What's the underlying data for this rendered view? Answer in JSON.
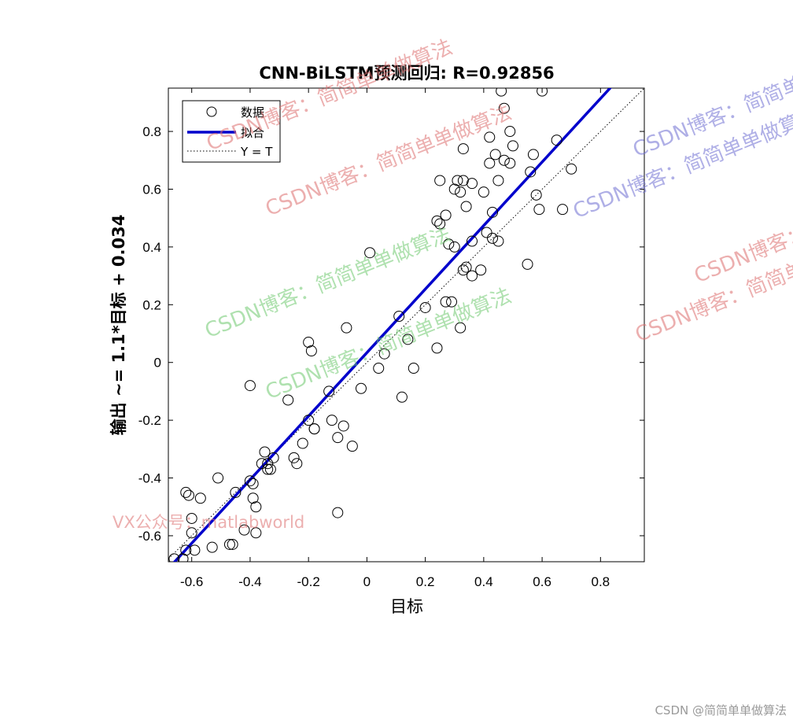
{
  "chart_data": {
    "type": "scatter",
    "title": "CNN-BiLSTM预测回归: R=0.92856",
    "xlabel": "目标",
    "ylabel": "输出 ~= 1.1*目标 + 0.034",
    "xlim": [
      -0.68,
      0.95
    ],
    "ylim": [
      -0.69,
      0.95
    ],
    "xticks": [
      -0.6,
      -0.4,
      -0.2,
      0,
      0.2,
      0.4,
      0.6,
      0.8
    ],
    "yticks": [
      -0.6,
      -0.4,
      -0.2,
      0,
      0.2,
      0.4,
      0.6,
      0.8
    ],
    "xtick_labels": [
      "-0.6",
      "-0.4",
      "-0.2",
      "0",
      "0.2",
      "0.4",
      "0.6",
      "0.8"
    ],
    "ytick_labels": [
      "-0.6",
      "-0.4",
      "-0.2",
      "0",
      "0.2",
      "0.4",
      "0.6",
      "0.8"
    ],
    "grid": false,
    "legend_position": "top-left",
    "legend": [
      "数据",
      "拟合",
      "Y = T"
    ],
    "fit": {
      "slope": 1.1,
      "intercept": 0.034,
      "color": "#0000cc"
    },
    "identity": {
      "color": "#000000"
    },
    "series": [
      {
        "name": "数据",
        "marker": "open-circle",
        "x": [
          -0.66,
          -0.63,
          -0.62,
          -0.59,
          -0.61,
          -0.62,
          -0.53,
          -0.6,
          -0.57,
          -0.6,
          -0.51,
          -0.46,
          -0.47,
          -0.45,
          -0.4,
          -0.35,
          -0.42,
          -0.39,
          -0.39,
          -0.38,
          -0.38,
          -0.36,
          -0.33,
          -0.32,
          -0.34,
          -0.34,
          -0.25,
          -0.24,
          -0.27,
          -0.2,
          -0.19,
          -0.18,
          -0.18,
          -0.2,
          -0.13,
          -0.12,
          -0.1,
          -0.08,
          -0.07,
          -0.05,
          -0.1,
          -0.02,
          -0.4,
          0.01,
          0.04,
          0.06,
          0.11,
          0.14,
          0.16,
          0.12,
          0.2,
          0.24,
          0.27,
          0.29,
          0.32,
          0.24,
          0.33,
          0.34,
          0.33,
          0.36,
          0.36,
          0.39,
          0.41,
          0.43,
          0.45,
          0.47,
          0.43,
          0.42,
          0.3,
          0.32,
          0.36,
          0.33,
          0.31,
          0.28,
          0.25,
          0.25,
          0.34,
          0.3,
          0.4,
          0.45,
          0.42,
          0.44,
          0.47,
          0.49,
          0.5,
          0.46,
          0.57,
          0.56,
          0.58,
          0.59,
          0.55,
          0.65,
          0.67,
          0.7,
          0.6,
          0.49,
          0.27,
          -0.22
        ],
        "y": [
          -0.68,
          -0.68,
          -0.65,
          -0.65,
          -0.46,
          -0.45,
          -0.64,
          -0.59,
          -0.47,
          -0.54,
          -0.4,
          -0.63,
          -0.63,
          -0.45,
          -0.41,
          -0.31,
          -0.58,
          -0.42,
          -0.47,
          -0.5,
          -0.59,
          -0.35,
          -0.37,
          -0.33,
          -0.35,
          -0.37,
          -0.33,
          -0.35,
          -0.13,
          0.07,
          0.04,
          -0.23,
          -0.23,
          -0.2,
          -0.1,
          -0.2,
          -0.26,
          -0.22,
          0.12,
          -0.29,
          -0.52,
          -0.09,
          -0.08,
          0.38,
          -0.02,
          0.03,
          0.16,
          0.08,
          -0.02,
          -0.12,
          0.19,
          0.05,
          0.21,
          0.21,
          0.12,
          0.49,
          0.32,
          0.54,
          0.63,
          0.42,
          0.3,
          0.32,
          0.45,
          0.43,
          0.63,
          0.7,
          0.52,
          0.69,
          0.4,
          0.59,
          0.62,
          0.74,
          0.63,
          0.41,
          0.63,
          0.48,
          0.33,
          0.6,
          0.59,
          0.42,
          0.78,
          0.72,
          0.88,
          0.8,
          0.75,
          0.94,
          0.72,
          0.66,
          0.58,
          0.53,
          0.34,
          0.77,
          0.53,
          0.67,
          0.94,
          0.69,
          0.51,
          -0.28
        ]
      }
    ]
  },
  "watermarks": {
    "blog_label": "CSDN博客：简简单单做算法",
    "wechat_label": "VX公众号：matlabworld"
  },
  "footer": {
    "credit": "CSDN @简简单单做算法"
  }
}
